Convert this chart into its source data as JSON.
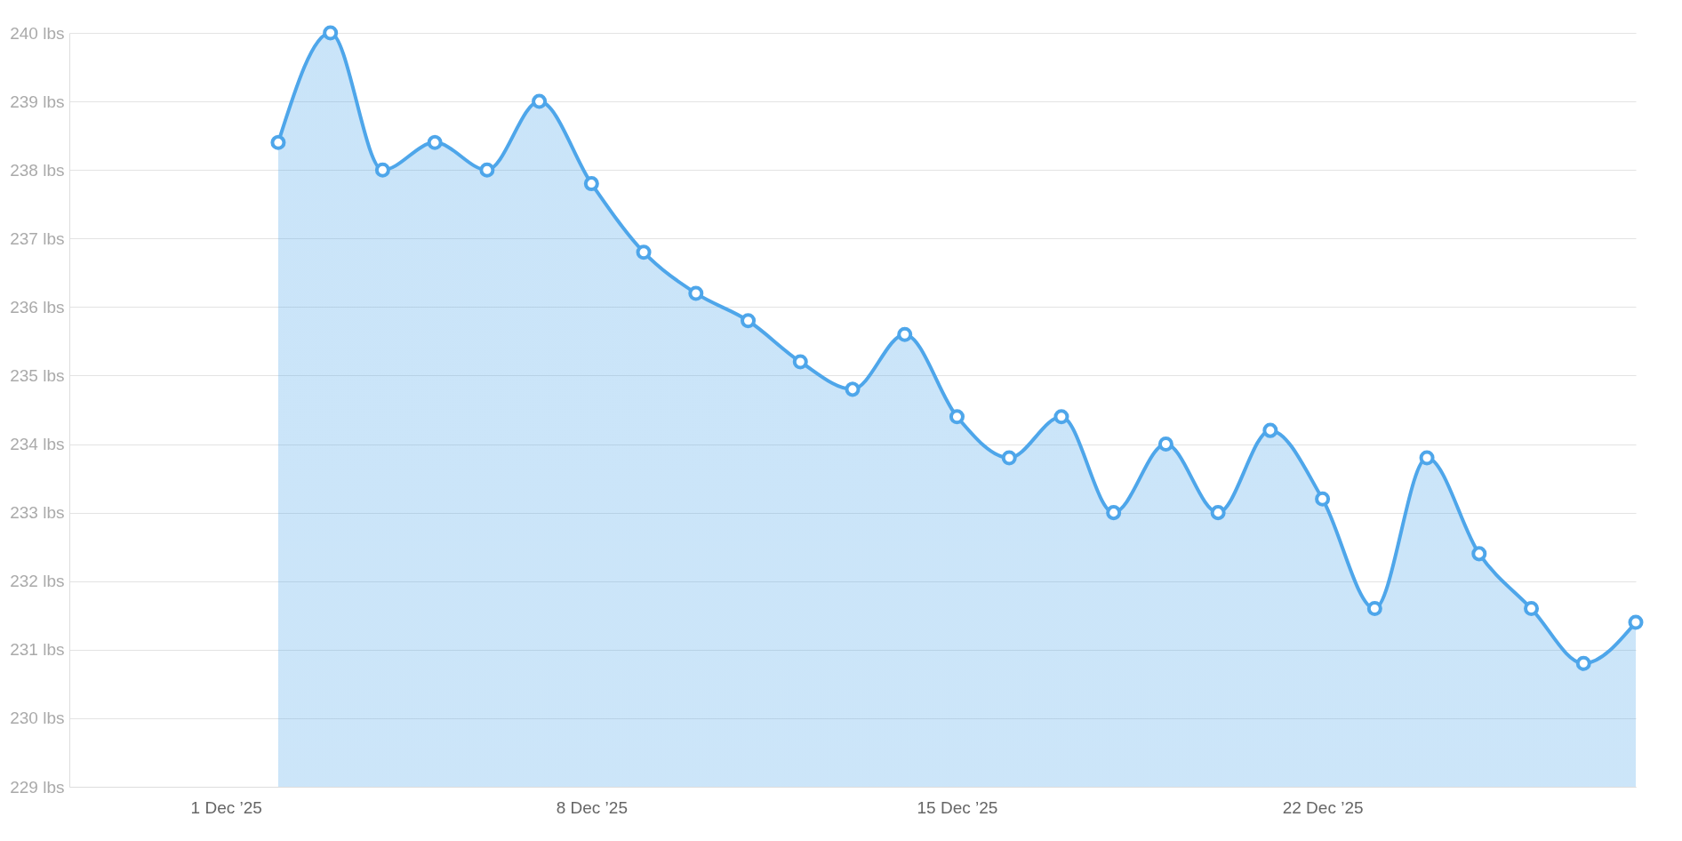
{
  "chart_data": {
    "type": "area",
    "x": [
      "2025-12-02",
      "2025-12-03",
      "2025-12-04",
      "2025-12-05",
      "2025-12-06",
      "2025-12-07",
      "2025-12-08",
      "2025-12-09",
      "2025-12-10",
      "2025-12-11",
      "2025-12-12",
      "2025-12-13",
      "2025-12-14",
      "2025-12-15",
      "2025-12-16",
      "2025-12-17",
      "2025-12-18",
      "2025-12-19",
      "2025-12-20",
      "2025-12-21",
      "2025-12-22",
      "2025-12-23",
      "2025-12-24",
      "2025-12-25",
      "2025-12-26",
      "2025-12-27",
      "2025-12-28"
    ],
    "series": [
      {
        "color": "#4ea6ea",
        "values": [
          238.4,
          240,
          238,
          238.4,
          238,
          239,
          237.8,
          236.8,
          236.2,
          235.8,
          235.2,
          234.8,
          235.6,
          234.4,
          233.8,
          234.4,
          233,
          234,
          233,
          234.2,
          233.2,
          231.6,
          233.8,
          232.4,
          231.6,
          230.8,
          231.4
        ]
      }
    ],
    "xlim": [
      "2025-11-28",
      "2025-12-28"
    ],
    "xticks": [
      {
        "value": "2025-12-01",
        "label": "1 Dec ’25"
      },
      {
        "value": "2025-12-08",
        "label": "8 Dec ’25"
      },
      {
        "value": "2025-12-15",
        "label": "15 Dec ’25"
      },
      {
        "value": "2025-12-22",
        "label": "22 Dec ’25"
      }
    ],
    "ylim": [
      229,
      240
    ],
    "yticks": [
      {
        "value": 229,
        "label": "229 lbs"
      },
      {
        "value": 230,
        "label": "230 lbs"
      },
      {
        "value": 231,
        "label": "231 lbs"
      },
      {
        "value": 232,
        "label": "232 lbs"
      },
      {
        "value": 233,
        "label": "233 lbs"
      },
      {
        "value": 234,
        "label": "234 lbs"
      },
      {
        "value": 235,
        "label": "235 lbs"
      },
      {
        "value": 236,
        "label": "236 lbs"
      },
      {
        "value": 237,
        "label": "237 lbs"
      },
      {
        "value": 238,
        "label": "238 lbs"
      },
      {
        "value": 239,
        "label": "239 lbs"
      },
      {
        "value": 240,
        "label": "240 lbs"
      }
    ],
    "grid": "y",
    "marker": "circle"
  }
}
